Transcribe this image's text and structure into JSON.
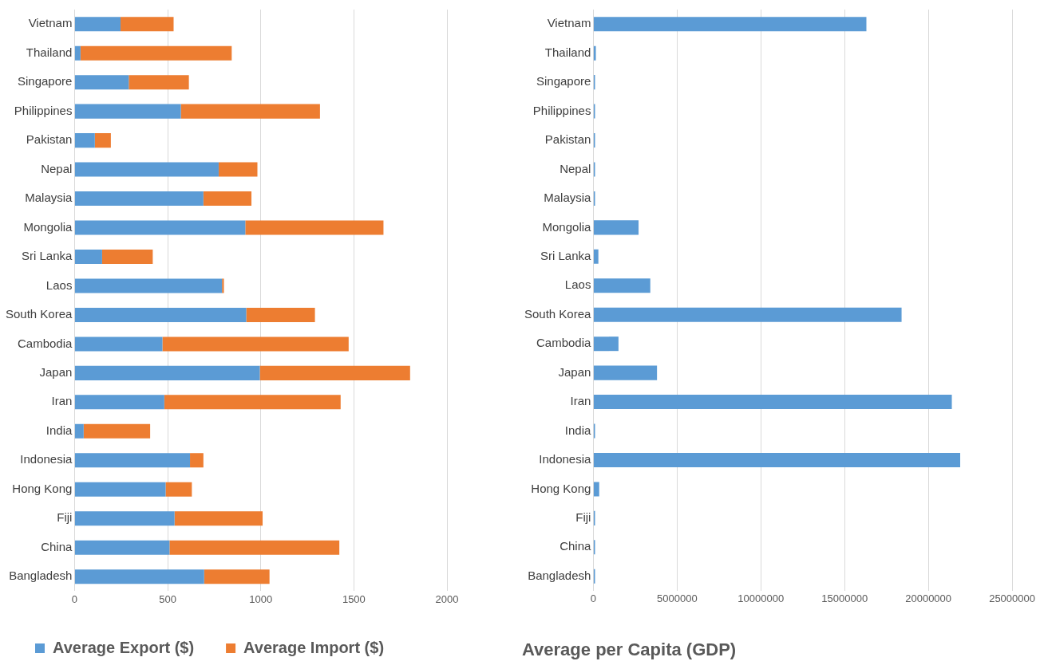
{
  "chart_data": [
    {
      "type": "bar",
      "orientation": "horizontal",
      "stacked": true,
      "categories": [
        "Vietnam",
        "Thailand",
        "Singapore",
        "Philippines",
        "Pakistan",
        "Nepal",
        "Malaysia",
        "Mongolia",
        "Sri Lanka",
        "Laos",
        "South Korea",
        "Cambodia",
        "Japan",
        "Iran",
        "India",
        "Indonesia",
        "Hong Kong",
        "Fiji",
        "China",
        "Bangladesh"
      ],
      "series": [
        {
          "name": "Average Export ($)",
          "color": "#5b9bd5",
          "values": [
            247,
            32,
            291,
            571,
            109,
            774,
            692,
            917,
            148,
            792,
            922,
            472,
            995,
            482,
            49,
            620,
            489,
            537,
            510,
            696
          ]
        },
        {
          "name": "Average Import ($)",
          "color": "#ed7d31",
          "values": [
            285,
            812,
            323,
            747,
            86,
            208,
            258,
            742,
            272,
            10,
            369,
            1000,
            807,
            947,
            357,
            72,
            141,
            473,
            912,
            351
          ]
        }
      ],
      "xlim": [
        0,
        2000
      ],
      "xticks": [
        0,
        500,
        1000,
        1500,
        2000
      ],
      "grid": "x",
      "legend": "bottom"
    },
    {
      "type": "bar",
      "orientation": "horizontal",
      "title": "Average per Capita (GDP)",
      "categories": [
        "Vietnam",
        "Thailand",
        "Singapore",
        "Philippines",
        "Pakistan",
        "Nepal",
        "Malaysia",
        "Mongolia",
        "Sri Lanka",
        "Laos",
        "South Korea",
        "Cambodia",
        "Japan",
        "Iran",
        "India",
        "Indonesia",
        "Hong Kong",
        "Fiji",
        "China",
        "Bangladesh"
      ],
      "values": [
        16300000,
        150000,
        100000,
        100000,
        100000,
        100000,
        100000,
        2700000,
        300000,
        3400000,
        18400000,
        1500000,
        3800000,
        21400000,
        100000,
        21900000,
        350000,
        100000,
        100000,
        100000
      ],
      "color": "#5b9bd5",
      "xlim": [
        0,
        25000000
      ],
      "xticks": [
        0,
        5000000,
        10000000,
        15000000,
        20000000,
        25000000
      ],
      "grid": "x"
    }
  ]
}
